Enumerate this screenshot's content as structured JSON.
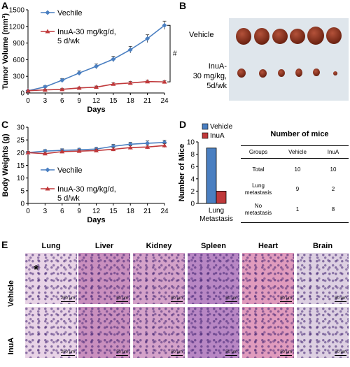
{
  "panels": {
    "a": "A",
    "b": "B",
    "c": "C",
    "d": "D",
    "e": "E"
  },
  "chart_data": [
    {
      "type": "line",
      "panel": "A",
      "ylabel": "Tumor Volume (mm³)",
      "xlabel": "Days",
      "x": [
        0,
        3,
        6,
        9,
        12,
        15,
        18,
        21,
        24
      ],
      "xlim": [
        0,
        24
      ],
      "ylim": [
        0,
        1500
      ],
      "yticks": [
        0,
        300,
        600,
        900,
        1200,
        1500
      ],
      "significance": "#",
      "series": [
        {
          "name": "Vechile",
          "color": "#4a7fc1",
          "marker": "diamond",
          "values": [
            40,
            110,
            230,
            360,
            480,
            610,
            780,
            980,
            1220
          ],
          "errors": [
            10,
            20,
            30,
            40,
            45,
            50,
            60,
            70,
            75
          ]
        },
        {
          "name": "InuA-30 mg/kg/d,\n5 d/wk",
          "color": "#c0393b",
          "marker": "triangle",
          "values": [
            40,
            55,
            65,
            90,
            105,
            160,
            180,
            205,
            200
          ],
          "errors": [
            8,
            12,
            15,
            15,
            20,
            25,
            30,
            25,
            20
          ]
        }
      ]
    },
    {
      "type": "line",
      "panel": "C",
      "ylabel": "Body Weights (g)",
      "xlabel": "Days",
      "x": [
        0,
        3,
        6,
        9,
        12,
        15,
        18,
        21,
        24
      ],
      "xlim": [
        0,
        24
      ],
      "ylim": [
        0,
        30
      ],
      "yticks": [
        0,
        5,
        10,
        15,
        20,
        25,
        30
      ],
      "series": [
        {
          "name": "Vechile",
          "color": "#4a7fc1",
          "marker": "diamond",
          "values": [
            20,
            20.6,
            20.9,
            21.1,
            21.4,
            22.5,
            23.3,
            23.7,
            24.0
          ],
          "errors": [
            0.5,
            0.6,
            0.6,
            0.6,
            0.7,
            0.8,
            0.8,
            0.9,
            0.9
          ]
        },
        {
          "name": "InuA-30 mg/kg/d,\n5 d/wk",
          "color": "#c0393b",
          "marker": "triangle",
          "values": [
            20,
            19.6,
            20.4,
            20.6,
            20.8,
            21.3,
            22.0,
            22.2,
            22.8
          ],
          "errors": [
            0.5,
            0.6,
            0.6,
            0.6,
            0.6,
            0.7,
            0.7,
            0.7,
            0.8
          ]
        }
      ]
    },
    {
      "type": "bar",
      "panel": "D",
      "ylabel": "Number of Mice",
      "categories": [
        "Lung\nMetastasis"
      ],
      "ylim": [
        0,
        10
      ],
      "yticks": [
        0,
        2,
        4,
        6,
        8,
        10
      ],
      "series": [
        {
          "name": "Vehicle",
          "color": "#4a7fc1",
          "values": [
            9
          ]
        },
        {
          "name": "InuA",
          "color": "#c0393b",
          "values": [
            2
          ]
        }
      ]
    }
  ],
  "panel_b": {
    "vehicle_label": "Vehicle",
    "inua_label": "InuA-\n30 mg/kg,\n5d/wk"
  },
  "table": {
    "title": "Number of mice",
    "headers": [
      "Groups",
      "Vehicle",
      "InuA"
    ],
    "rows": [
      [
        "Total",
        "10",
        "10"
      ],
      [
        "Lung\nmetastasis",
        "9",
        "2"
      ],
      [
        "No\nmetastasis",
        "1",
        "8"
      ]
    ]
  },
  "histology": {
    "columns": [
      "Lung",
      "Liver",
      "Kidney",
      "Spleen",
      "Heart",
      "Brain"
    ],
    "rows": [
      "Vehicle",
      "InuA"
    ],
    "scalebars": [
      "250 μm",
      "50 μm",
      "50 μm",
      "50 μm",
      "50 μm",
      "50 μm"
    ],
    "tissue_colors": [
      "#e8d3e6",
      "#c98fbe",
      "#d4a2c9",
      "#b887c4",
      "#e09bbd",
      "#ddd0e2"
    ],
    "asterisk": "*"
  }
}
